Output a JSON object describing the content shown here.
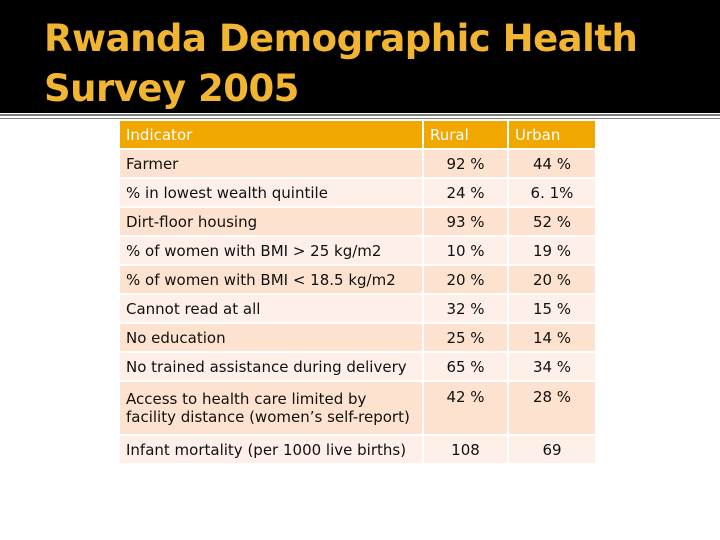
{
  "slide": {
    "title_line1": "Rwanda Demographic Health",
    "title_line2": "Survey 2005"
  },
  "colors": {
    "title_bar": "#000000",
    "title_text": "#f2b531",
    "header_fill": "#f0a700",
    "row_fill_odd": "#fde3cf",
    "row_fill_even": "#fef0e8"
  },
  "table": {
    "headers": [
      "Indicator",
      "Rural",
      "Urban"
    ],
    "rows": [
      {
        "indicator": "Farmer",
        "rural": "92 %",
        "urban": "44 %"
      },
      {
        "indicator": "% in lowest wealth quintile",
        "rural": "24 %",
        "urban": "6. 1%"
      },
      {
        "indicator": "Dirt-floor housing",
        "rural": "93 %",
        "urban": "52 %"
      },
      {
        "indicator": "% of women with BMI > 25 kg/m2",
        "rural": "10 %",
        "urban": "19 %"
      },
      {
        "indicator": "% of women with BMI < 18.5 kg/m2",
        "rural": "20 %",
        "urban": "20 %"
      },
      {
        "indicator": "Cannot read at all",
        "rural": "32 %",
        "urban": "15 %"
      },
      {
        "indicator": "No education",
        "rural": "25 %",
        "urban": "14 %"
      },
      {
        "indicator": "No trained assistance during delivery",
        "rural": "65 %",
        "urban": "34 %"
      },
      {
        "indicator": "Access to health care limited by facility distance (women’s self-report)",
        "rural": "42 %",
        "urban": "28 %"
      },
      {
        "indicator": "Infant mortality (per 1000 live births)",
        "rural": "108",
        "urban": "69"
      }
    ]
  }
}
